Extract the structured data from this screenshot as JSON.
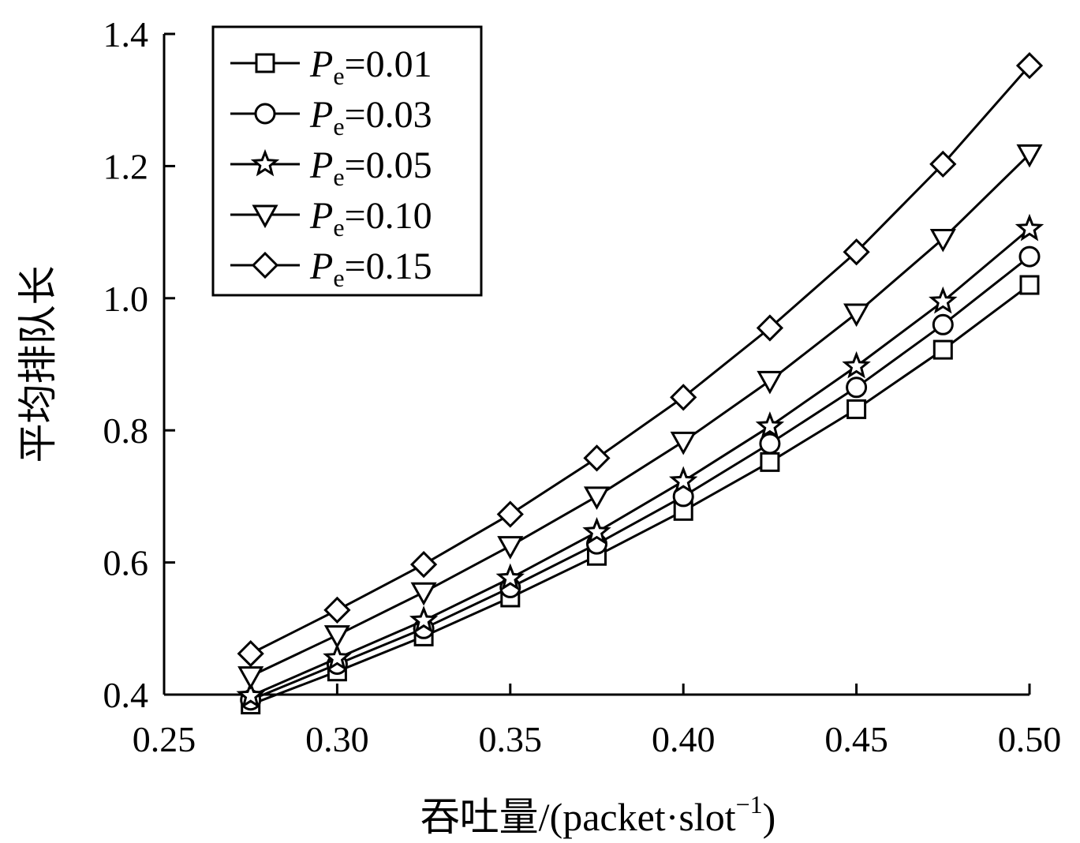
{
  "chart_data": {
    "type": "line",
    "title": "",
    "xlabel": "吞吐量/(packet·slot",
    "xlabel_sup": "−1",
    "xlabel_close": ")",
    "ylabel": "平均排队长",
    "xlim": [
      0.25,
      0.5
    ],
    "ylim": [
      0.4,
      1.4
    ],
    "x_ticks": [
      "0.25",
      "0.30",
      "0.35",
      "0.40",
      "0.45",
      "0.50"
    ],
    "y_ticks": [
      "0.4",
      "0.6",
      "0.8",
      "1.0",
      "1.2",
      "1.4"
    ],
    "grid": false,
    "legend_position": "top-left",
    "x": [
      0.275,
      0.3,
      0.325,
      0.35,
      0.375,
      0.4,
      0.425,
      0.45,
      0.475,
      0.5
    ],
    "series": [
      {
        "name_main": "P",
        "name_sub": "e",
        "name_value": "=0.01",
        "marker": "square",
        "values": [
          0.385,
          0.435,
          0.488,
          0.547,
          0.61,
          0.678,
          0.752,
          0.832,
          0.922,
          1.02
        ]
      },
      {
        "name_main": "P",
        "name_sub": "e",
        "name_value": "=0.03",
        "marker": "circle",
        "values": [
          0.392,
          0.446,
          0.5,
          0.562,
          0.628,
          0.7,
          0.78,
          0.865,
          0.96,
          1.063
        ]
      },
      {
        "name_main": "P",
        "name_sub": "e",
        "name_value": "=0.05",
        "marker": "star",
        "values": [
          0.398,
          0.455,
          0.512,
          0.576,
          0.646,
          0.723,
          0.806,
          0.897,
          0.995,
          1.105
        ]
      },
      {
        "name_main": "P",
        "name_sub": "e",
        "name_value": "=0.10",
        "marker": "triangle-down",
        "values": [
          0.428,
          0.49,
          0.555,
          0.625,
          0.7,
          0.783,
          0.875,
          0.977,
          1.09,
          1.218
        ]
      },
      {
        "name_main": "P",
        "name_sub": "e",
        "name_value": "=0.15",
        "marker": "diamond",
        "values": [
          0.462,
          0.528,
          0.597,
          0.673,
          0.758,
          0.85,
          0.955,
          1.07,
          1.203,
          1.352
        ]
      }
    ]
  }
}
